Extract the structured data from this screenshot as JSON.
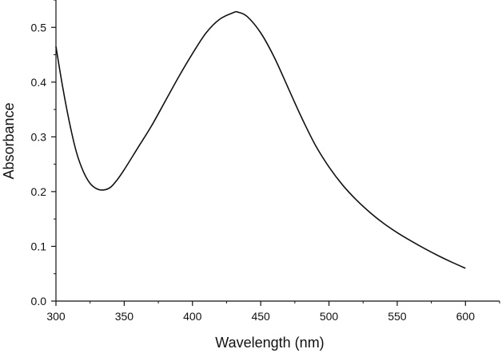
{
  "chart_data": {
    "type": "line",
    "title": "",
    "xlabel": "Wavelength (nm)",
    "ylabel": "Absorbance",
    "xlim": [
      300,
      625
    ],
    "ylim": [
      0.0,
      0.55
    ],
    "xticks": [
      300,
      350,
      400,
      450,
      500,
      550,
      600
    ],
    "xtick_labels": [
      "300",
      "350",
      "400",
      "450",
      "500",
      "550",
      "600"
    ],
    "yticks": [
      0.0,
      0.1,
      0.2,
      0.3,
      0.4,
      0.5
    ],
    "ytick_labels": [
      "0.0",
      "0.1",
      "0.2",
      "0.3",
      "0.4",
      "0.5"
    ],
    "grid": false,
    "legend": "none",
    "line_color": "#111111",
    "series": [
      {
        "x": [
          300,
          305,
          310,
          315,
          320,
          325,
          330,
          335,
          340,
          345,
          350,
          360,
          370,
          380,
          390,
          400,
          410,
          420,
          430,
          433,
          440,
          450,
          460,
          470,
          480,
          490,
          500,
          510,
          520,
          530,
          540,
          550,
          560,
          570,
          580,
          590,
          600
        ],
        "y": [
          0.465,
          0.39,
          0.325,
          0.272,
          0.237,
          0.215,
          0.205,
          0.203,
          0.208,
          0.222,
          0.24,
          0.28,
          0.32,
          0.365,
          0.41,
          0.452,
          0.49,
          0.515,
          0.527,
          0.528,
          0.52,
          0.49,
          0.445,
          0.39,
          0.335,
          0.285,
          0.245,
          0.212,
          0.185,
          0.162,
          0.142,
          0.125,
          0.11,
          0.096,
          0.083,
          0.071,
          0.06
        ]
      }
    ]
  }
}
